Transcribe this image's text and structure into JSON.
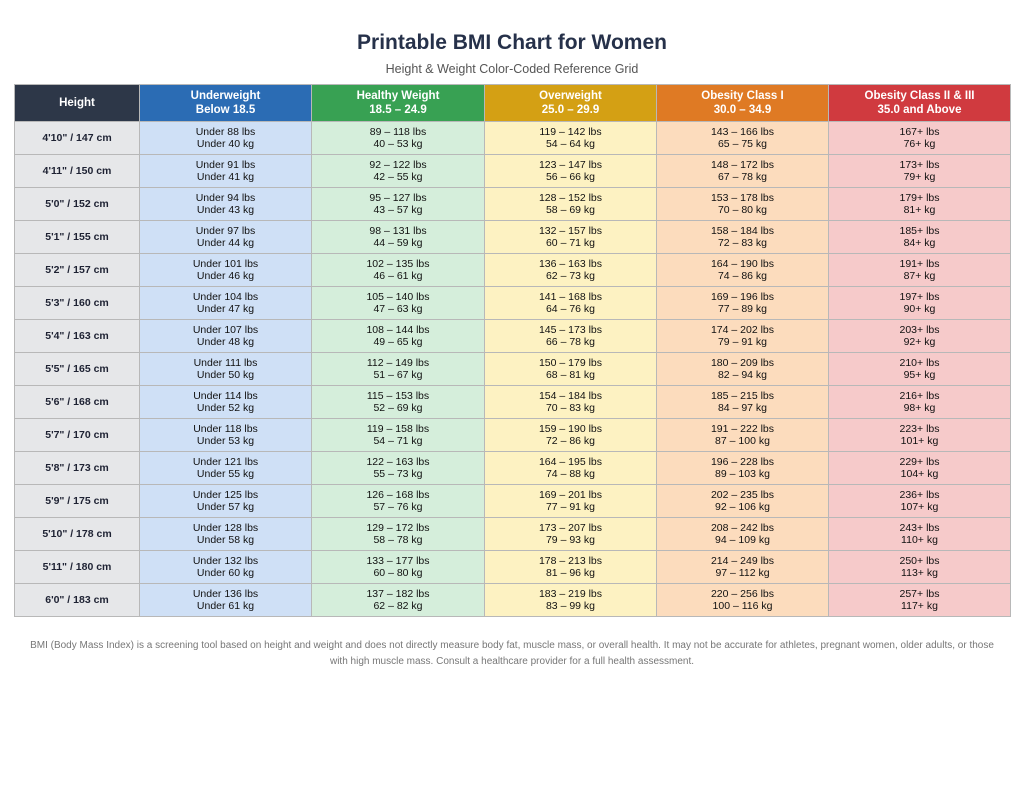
{
  "header": {
    "title": "Printable BMI Chart for Women",
    "subtitle": "Height & Weight Color-Coded Reference Grid"
  },
  "colors": {
    "height_header": "#2d3748",
    "underweight": "#2b6cb4",
    "healthy": "#38a153",
    "overweight": "#d4a014",
    "obesity_1": "#df7a24",
    "obesity_2_3": "#d03a3f"
  },
  "columns": [
    {
      "label": "Height",
      "range": ""
    },
    {
      "label": "Underweight",
      "range": "Below 18.5"
    },
    {
      "label": "Healthy Weight",
      "range": "18.5 – 24.9"
    },
    {
      "label": "Overweight",
      "range": "25.0 – 29.9"
    },
    {
      "label": "Obesity Class I",
      "range": "30.0 – 34.9"
    },
    {
      "label": "Obesity Class II & III",
      "range": "35.0 and Above"
    }
  ],
  "rows": [
    {
      "height": "4'10\" / 147 cm",
      "cells": [
        [
          "Under 88 lbs",
          "Under 40 kg"
        ],
        [
          "89 – 118 lbs",
          "40 – 53 kg"
        ],
        [
          "119 – 142 lbs",
          "54 – 64 kg"
        ],
        [
          "143 – 166 lbs",
          "65 – 75 kg"
        ],
        [
          "167+ lbs",
          "76+ kg"
        ]
      ]
    },
    {
      "height": "4'11\" / 150 cm",
      "cells": [
        [
          "Under 91 lbs",
          "Under 41 kg"
        ],
        [
          "92 – 122 lbs",
          "42 – 55 kg"
        ],
        [
          "123 – 147 lbs",
          "56 – 66 kg"
        ],
        [
          "148 – 172 lbs",
          "67 – 78 kg"
        ],
        [
          "173+ lbs",
          "79+ kg"
        ]
      ]
    },
    {
      "height": "5'0\" / 152 cm",
      "cells": [
        [
          "Under 94 lbs",
          "Under 43 kg"
        ],
        [
          "95 – 127 lbs",
          "43 – 57 kg"
        ],
        [
          "128 – 152 lbs",
          "58 – 69 kg"
        ],
        [
          "153 – 178 lbs",
          "70 – 80 kg"
        ],
        [
          "179+ lbs",
          "81+ kg"
        ]
      ]
    },
    {
      "height": "5'1\" / 155 cm",
      "cells": [
        [
          "Under 97 lbs",
          "Under 44 kg"
        ],
        [
          "98 – 131 lbs",
          "44 – 59 kg"
        ],
        [
          "132 – 157 lbs",
          "60 – 71 kg"
        ],
        [
          "158 – 184 lbs",
          "72 – 83 kg"
        ],
        [
          "185+ lbs",
          "84+ kg"
        ]
      ]
    },
    {
      "height": "5'2\" / 157 cm",
      "cells": [
        [
          "Under 101 lbs",
          "Under 46 kg"
        ],
        [
          "102 – 135 lbs",
          "46 – 61 kg"
        ],
        [
          "136 – 163 lbs",
          "62 – 73 kg"
        ],
        [
          "164 – 190 lbs",
          "74 – 86 kg"
        ],
        [
          "191+ lbs",
          "87+ kg"
        ]
      ]
    },
    {
      "height": "5'3\" / 160 cm",
      "cells": [
        [
          "Under 104 lbs",
          "Under 47 kg"
        ],
        [
          "105 – 140 lbs",
          "47 – 63 kg"
        ],
        [
          "141 – 168 lbs",
          "64 – 76 kg"
        ],
        [
          "169 – 196 lbs",
          "77 – 89 kg"
        ],
        [
          "197+ lbs",
          "90+ kg"
        ]
      ]
    },
    {
      "height": "5'4\" / 163 cm",
      "cells": [
        [
          "Under 107 lbs",
          "Under 48 kg"
        ],
        [
          "108 – 144 lbs",
          "49 – 65 kg"
        ],
        [
          "145 – 173 lbs",
          "66 – 78 kg"
        ],
        [
          "174 – 202 lbs",
          "79 – 91 kg"
        ],
        [
          "203+ lbs",
          "92+ kg"
        ]
      ]
    },
    {
      "height": "5'5\" / 165 cm",
      "cells": [
        [
          "Under 111 lbs",
          "Under 50 kg"
        ],
        [
          "112 – 149 lbs",
          "51 – 67 kg"
        ],
        [
          "150 – 179 lbs",
          "68 – 81 kg"
        ],
        [
          "180 – 209 lbs",
          "82 – 94 kg"
        ],
        [
          "210+ lbs",
          "95+ kg"
        ]
      ]
    },
    {
      "height": "5'6\" / 168 cm",
      "cells": [
        [
          "Under 114 lbs",
          "Under 52 kg"
        ],
        [
          "115 – 153 lbs",
          "52 – 69 kg"
        ],
        [
          "154 – 184 lbs",
          "70 – 83 kg"
        ],
        [
          "185 – 215 lbs",
          "84 – 97 kg"
        ],
        [
          "216+ lbs",
          "98+ kg"
        ]
      ]
    },
    {
      "height": "5'7\" / 170 cm",
      "cells": [
        [
          "Under 118 lbs",
          "Under 53 kg"
        ],
        [
          "119 – 158 lbs",
          "54 – 71 kg"
        ],
        [
          "159 – 190 lbs",
          "72 – 86 kg"
        ],
        [
          "191 – 222 lbs",
          "87 – 100 kg"
        ],
        [
          "223+ lbs",
          "101+ kg"
        ]
      ]
    },
    {
      "height": "5'8\" / 173 cm",
      "cells": [
        [
          "Under 121 lbs",
          "Under 55 kg"
        ],
        [
          "122 – 163 lbs",
          "55 – 73 kg"
        ],
        [
          "164 – 195 lbs",
          "74 – 88 kg"
        ],
        [
          "196 – 228 lbs",
          "89 – 103 kg"
        ],
        [
          "229+ lbs",
          "104+ kg"
        ]
      ]
    },
    {
      "height": "5'9\" / 175 cm",
      "cells": [
        [
          "Under 125 lbs",
          "Under 57 kg"
        ],
        [
          "126 – 168 lbs",
          "57 – 76 kg"
        ],
        [
          "169 – 201 lbs",
          "77 – 91 kg"
        ],
        [
          "202 – 235 lbs",
          "92 – 106 kg"
        ],
        [
          "236+ lbs",
          "107+ kg"
        ]
      ]
    },
    {
      "height": "5'10\" / 178 cm",
      "cells": [
        [
          "Under 128 lbs",
          "Under 58 kg"
        ],
        [
          "129 – 172 lbs",
          "58 – 78 kg"
        ],
        [
          "173 – 207 lbs",
          "79 – 93 kg"
        ],
        [
          "208 – 242 lbs",
          "94 – 109 kg"
        ],
        [
          "243+ lbs",
          "110+ kg"
        ]
      ]
    },
    {
      "height": "5'11\" / 180 cm",
      "cells": [
        [
          "Under 132 lbs",
          "Under 60 kg"
        ],
        [
          "133 – 177 lbs",
          "60 – 80 kg"
        ],
        [
          "178 – 213 lbs",
          "81 – 96 kg"
        ],
        [
          "214 – 249 lbs",
          "97 – 112 kg"
        ],
        [
          "250+ lbs",
          "113+ kg"
        ]
      ]
    },
    {
      "height": "6'0\" / 183 cm",
      "cells": [
        [
          "Under 136 lbs",
          "Under 61 kg"
        ],
        [
          "137 – 182 lbs",
          "62 – 82 kg"
        ],
        [
          "183 – 219 lbs",
          "83 – 99 kg"
        ],
        [
          "220 – 256 lbs",
          "100 – 116 kg"
        ],
        [
          "257+ lbs",
          "117+ kg"
        ]
      ]
    }
  ],
  "footnote": "BMI (Body Mass Index) is a screening tool based on height and weight and does not directly measure body fat, muscle mass, or overall health. It may not be accurate for athletes, pregnant women, older adults, or those with high muscle mass. Consult a healthcare provider for a full health assessment."
}
